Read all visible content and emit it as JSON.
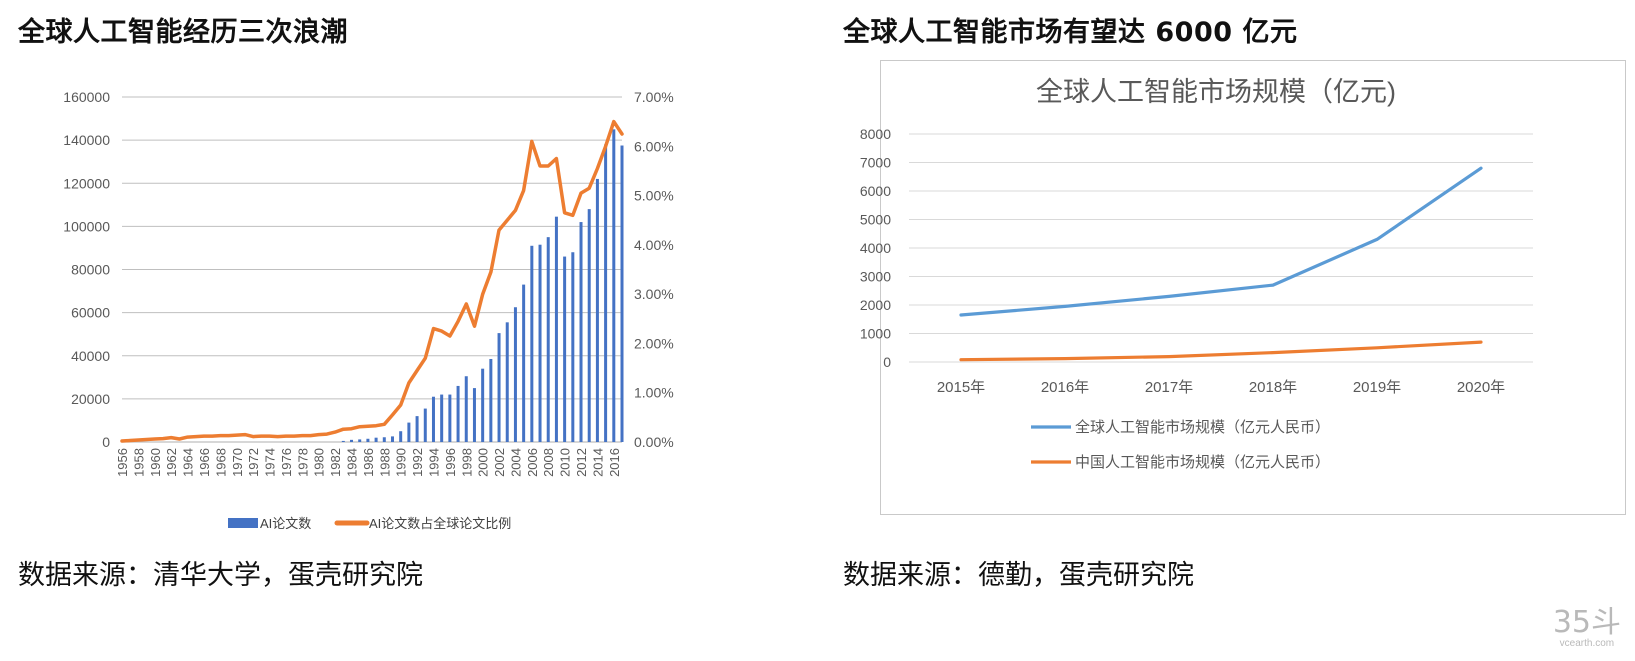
{
  "left": {
    "title": "全球人工智能经历三次浪潮",
    "source": "数据来源：清华大学，蛋壳研究院"
  },
  "right": {
    "title": "全球人工智能市场有望达 6000 亿元",
    "source": "数据来源：德勤，蛋壳研究院"
  },
  "watermark": {
    "main": "35斗",
    "sub": "vcearth.com"
  },
  "chart_data": [
    {
      "type": "bar",
      "title": "",
      "legend_position": "bottom",
      "y_left_ticks": [
        "0",
        "20000",
        "40000",
        "60000",
        "80000",
        "100000",
        "120000",
        "140000",
        "160000"
      ],
      "y_right_ticks": [
        "0.00%",
        "1.00%",
        "2.00%",
        "3.00%",
        "4.00%",
        "5.00%",
        "6.00%",
        "7.00%"
      ],
      "ylim_left": [
        0,
        160000
      ],
      "ylim_right": [
        0,
        7
      ],
      "x_tick_labels": [
        "1956",
        "1958",
        "1960",
        "1962",
        "1964",
        "1966",
        "1968",
        "1970",
        "1972",
        "1974",
        "1976",
        "1978",
        "1980",
        "1982",
        "1984",
        "1986",
        "1988",
        "1990",
        "1992",
        "1994",
        "1996",
        "1998",
        "2000",
        "2002",
        "2004",
        "2006",
        "2008",
        "2010",
        "2012",
        "2014",
        "2016"
      ],
      "x": [
        1956,
        1957,
        1958,
        1959,
        1960,
        1961,
        1962,
        1963,
        1964,
        1965,
        1966,
        1967,
        1968,
        1969,
        1970,
        1971,
        1972,
        1973,
        1974,
        1975,
        1976,
        1977,
        1978,
        1979,
        1980,
        1981,
        1982,
        1983,
        1984,
        1985,
        1986,
        1987,
        1988,
        1989,
        1990,
        1991,
        1992,
        1993,
        1994,
        1995,
        1996,
        1997,
        1998,
        1999,
        2000,
        2001,
        2002,
        2003,
        2004,
        2005,
        2006,
        2007,
        2008,
        2009,
        2010,
        2011,
        2012,
        2013,
        2014,
        2015,
        2016,
        2017
      ],
      "series": [
        {
          "name": "AI论文数",
          "axis": "left",
          "color": "#4472c4",
          "values": [
            0,
            0,
            0,
            0,
            0,
            0,
            0,
            0,
            0,
            0,
            0,
            0,
            0,
            0,
            0,
            0,
            0,
            0,
            0,
            0,
            0,
            0,
            0,
            0,
            0,
            0,
            0,
            500,
            1000,
            1200,
            1500,
            2000,
            2200,
            2600,
            5000,
            9000,
            12000,
            15500,
            21000,
            22000,
            22000,
            26000,
            30500,
            25000,
            34000,
            38500,
            50500,
            55500,
            62500,
            73000,
            91000,
            91500,
            95000,
            104500,
            86000,
            88000,
            102000,
            108000,
            122000,
            138000,
            145000,
            137500
          ]
        },
        {
          "name": "AI论文数占全球论文比例",
          "axis": "right",
          "color": "#ed7d31",
          "values": [
            0.02,
            0.03,
            0.04,
            0.05,
            0.06,
            0.07,
            0.09,
            0.06,
            0.1,
            0.11,
            0.12,
            0.12,
            0.13,
            0.13,
            0.14,
            0.15,
            0.11,
            0.12,
            0.12,
            0.11,
            0.12,
            0.12,
            0.13,
            0.13,
            0.15,
            0.16,
            0.2,
            0.26,
            0.27,
            0.31,
            0.32,
            0.33,
            0.36,
            0.55,
            0.75,
            1.2,
            1.45,
            1.7,
            2.3,
            2.25,
            2.15,
            2.45,
            2.8,
            2.35,
            3.0,
            3.45,
            4.3,
            4.5,
            4.7,
            5.1,
            6.1,
            5.6,
            5.6,
            5.75,
            4.65,
            4.6,
            5.05,
            5.15,
            5.55,
            6.0,
            6.5,
            6.25
          ]
        }
      ]
    },
    {
      "type": "line",
      "title": "全球人工智能市场规模（亿元)",
      "legend_position": "bottom",
      "categories": [
        "2015年",
        "2016年",
        "2017年",
        "2018年",
        "2019年",
        "2020年"
      ],
      "y_ticks": [
        "0",
        "1000",
        "2000",
        "3000",
        "4000",
        "5000",
        "6000",
        "7000",
        "8000"
      ],
      "ylim": [
        0,
        8000
      ],
      "series": [
        {
          "name": "全球人工智能市场规模（亿元人民币）",
          "color": "#5b9bd5",
          "values": [
            1650,
            1950,
            2300,
            2700,
            4300,
            6800
          ]
        },
        {
          "name": "中国人工智能市场规模（亿元人民币）",
          "color": "#ed7d31",
          "values": [
            80,
            120,
            190,
            330,
            500,
            700
          ]
        }
      ]
    }
  ]
}
